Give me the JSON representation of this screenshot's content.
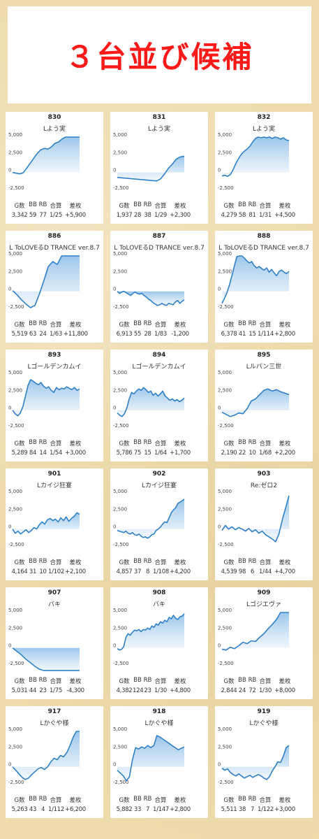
{
  "banner": {
    "title": "３台並び候補"
  },
  "stat_headers": [
    "G数",
    "BB",
    "RB",
    "合算",
    "差枚"
  ],
  "colors": {
    "line": "#2f80c8",
    "fill_top": "#8fbfe8",
    "fill_bottom": "#e8f2fb",
    "title": "#ff1a1a"
  },
  "chart_data": [
    {
      "type": "line",
      "no": "830",
      "name": "Lよう実",
      "games": "3,342",
      "bb": "59",
      "rb": "77",
      "combined": "1/25",
      "diff": "+5,900",
      "ylim": [
        -2500,
        5000
      ],
      "yticks": [
        "5,000",
        "2,500",
        "0",
        "-2,500"
      ],
      "yticks_values": [
        5000,
        2500,
        0,
        -2500
      ],
      "values": [
        0,
        -100,
        -200,
        -50,
        600,
        1300,
        2000,
        2700,
        3200,
        3400,
        3300,
        3600,
        4100,
        4300,
        4700,
        5100,
        5300,
        5500,
        5700,
        5900
      ]
    },
    {
      "type": "line",
      "no": "831",
      "name": "Lよう実",
      "games": "1,937",
      "bb": "28",
      "rb": "38",
      "combined": "1/29",
      "diff": "+2,300",
      "ylim": [
        -2500,
        5000
      ],
      "yticks": [
        "5,000",
        "2,500",
        "0",
        "-2,500"
      ],
      "yticks_values": [
        5000,
        2500,
        0,
        -2500
      ],
      "values": [
        -700,
        -750,
        -800,
        -850,
        -900,
        -950,
        -1000,
        -1050,
        -1100,
        -1150,
        -1200,
        -900,
        -200,
        600,
        1200,
        1900,
        2200,
        2300
      ]
    },
    {
      "type": "line",
      "no": "832",
      "name": "Lよう実",
      "games": "4,279",
      "bb": "58",
      "rb": "81",
      "combined": "1/31",
      "diff": "+4,500",
      "ylim": [
        -2500,
        5000
      ],
      "yticks": [
        "5,000",
        "2,500",
        "0",
        "-2,500"
      ],
      "yticks_values": [
        5000,
        2500,
        0,
        -2500
      ],
      "values": [
        -500,
        -400,
        -550,
        -300,
        400,
        1300,
        2000,
        2600,
        3000,
        3300,
        3700,
        4300,
        4800,
        5100,
        4900,
        5200,
        4900,
        5100,
        4800,
        5000,
        4900,
        4700,
        4900,
        4600,
        4500
      ]
    },
    {
      "type": "line",
      "no": "886",
      "name": "L ToLOVEるD TRANCE ver.8.7",
      "games": "5,519",
      "bb": "63",
      "rb": "24",
      "combined": "1/63",
      "diff": "+11,800",
      "ylim": [
        -2500,
        5000
      ],
      "yticks": [
        "5,000",
        "2,500",
        "0",
        "-2,500"
      ],
      "yticks_values": [
        5000,
        2500,
        0,
        -2500
      ],
      "values": [
        100,
        -500,
        -1200,
        -1800,
        -2300,
        -2000,
        -400,
        1500,
        3500,
        4200,
        3800,
        5200,
        7000,
        9000,
        10500,
        11800
      ]
    },
    {
      "type": "line",
      "no": "887",
      "name": "L ToLOVEるD TRANCE ver.8.7",
      "games": "6,913",
      "bb": "55",
      "rb": "28",
      "combined": "1/83",
      "diff": "-1,200",
      "ylim": [
        -2500,
        5000
      ],
      "yticks": [
        "5,000",
        "2,500",
        "0",
        "-2,500"
      ],
      "yticks_values": [
        5000,
        2500,
        0,
        -2500
      ],
      "values": [
        0,
        -300,
        -100,
        0,
        -200,
        -400,
        -600,
        -300,
        -100,
        -300,
        -400,
        -300,
        -600,
        -800,
        -1100,
        -1300,
        -1600,
        -1800,
        -2000,
        -1900,
        -1700,
        -1900,
        -2000,
        -1700,
        -1800,
        -1900,
        -1500,
        -1300,
        -1700,
        -1400,
        -1200
      ]
    },
    {
      "type": "line",
      "no": "888",
      "name": "L ToLOVEるD TRANCE ver.8.7",
      "games": "6,378",
      "bb": "41",
      "rb": "15",
      "combined": "1/114",
      "diff": "+2,800",
      "ylim": [
        -2500,
        5000
      ],
      "yticks": [
        "5,000",
        "2,500",
        "0",
        "-2,500"
      ],
      "yticks_values": [
        5000,
        2500,
        0,
        -2500
      ],
      "values": [
        -1700,
        -1000,
        -200,
        900,
        2200,
        3600,
        4900,
        5100,
        5000,
        4700,
        4300,
        4000,
        4200,
        3600,
        3300,
        3500,
        3200,
        3000,
        3300,
        2700,
        3100,
        2600,
        2200,
        2800,
        3000,
        2700,
        2500,
        2800
      ]
    },
    {
      "type": "line",
      "no": "893",
      "name": "Lゴールデンカムイ",
      "games": "5,289",
      "bb": "84",
      "rb": "14",
      "combined": "1/54",
      "diff": "+3,000",
      "ylim": [
        -2500,
        5000
      ],
      "yticks": [
        "5,000",
        "2,500",
        "0",
        "-2,500"
      ],
      "yticks_values": [
        5000,
        2500,
        0,
        -2500
      ],
      "values": [
        0,
        -500,
        -800,
        -400,
        500,
        2000,
        3500,
        4300,
        4100,
        3800,
        3600,
        3900,
        3400,
        3100,
        3300,
        2800,
        2500,
        3200,
        2900,
        3100,
        3000,
        3300,
        3100,
        2900,
        3200,
        2800,
        3000
      ]
    },
    {
      "type": "line",
      "no": "894",
      "name": "Lゴールデンカムイ",
      "games": "5,786",
      "bb": "75",
      "rb": "15",
      "combined": "1/64",
      "diff": "+1,700",
      "ylim": [
        -2500,
        5000
      ],
      "yticks": [
        "5,000",
        "2,500",
        "0",
        "-2,500"
      ],
      "yticks_values": [
        5000,
        2500,
        0,
        -2500
      ],
      "values": [
        -400,
        -700,
        -900,
        -500,
        300,
        1600,
        2500,
        2300,
        2700,
        3000,
        2800,
        3200,
        2900,
        2500,
        2700,
        2100,
        2400,
        2000,
        2300,
        2700,
        2000,
        1700,
        1400,
        1600,
        1300,
        1500,
        1200,
        1400,
        1700
      ]
    },
    {
      "type": "line",
      "no": "895",
      "name": "Lルパン三世",
      "games": "2,190",
      "bb": "22",
      "rb": "10",
      "combined": "1/68",
      "diff": "+2,200",
      "ylim": [
        -2500,
        5000
      ],
      "yticks": [
        "5,000",
        "2,500",
        "0",
        "-2,500"
      ],
      "yticks_values": [
        5000,
        2500,
        0,
        -2500
      ],
      "values": [
        -300,
        -600,
        -900,
        -700,
        -400,
        -500,
        200,
        1300,
        1600,
        2200,
        2800,
        3000,
        2700,
        2900,
        2600,
        2400,
        2200
      ]
    },
    {
      "type": "line",
      "no": "901",
      "name": "Lカイジ狂宴",
      "games": "4,164",
      "bb": "31",
      "rb": "10",
      "combined": "1/102",
      "diff": "+2,100",
      "ylim": [
        -2500,
        5000
      ],
      "yticks": [
        "5,000",
        "2,500",
        "0",
        "-2,500"
      ],
      "yticks_values": [
        5000,
        2500,
        0,
        -2500
      ],
      "values": [
        0,
        -600,
        -300,
        -700,
        -400,
        -100,
        -500,
        -200,
        200,
        0,
        600,
        1000,
        700,
        1300,
        1500,
        1200,
        1400,
        1000,
        1600,
        1200,
        1700,
        1100,
        1500,
        1800,
        2300,
        2100
      ]
    },
    {
      "type": "line",
      "no": "902",
      "name": "Lカイジ狂宴",
      "games": "4,857",
      "bb": "37",
      "rb": "8",
      "combined": "1/108",
      "diff": "+4,200",
      "ylim": [
        -2500,
        5000
      ],
      "yticks": [
        "5,000",
        "2,500",
        "0",
        "-2,500"
      ],
      "yticks_values": [
        5000,
        2500,
        0,
        -2500
      ],
      "values": [
        -200,
        -300,
        -400,
        -500,
        -300,
        -600,
        -700,
        -500,
        -800,
        -900,
        -700,
        -1000,
        -1200,
        -1100,
        -1300,
        -1100,
        -800,
        -700,
        -200,
        0,
        300,
        700,
        1000,
        900,
        1600,
        2300,
        2700,
        3000,
        3600,
        3800,
        4000,
        4200
      ]
    },
    {
      "type": "line",
      "no": "903",
      "name": "Re:ゼロ2",
      "games": "4,539",
      "bb": "98",
      "rb": "6",
      "combined": "1/44",
      "diff": "+4,700",
      "ylim": [
        -2500,
        5000
      ],
      "yticks": [
        "5,000",
        "2,500",
        "0",
        "-2,500"
      ],
      "yticks_values": [
        5000,
        2500,
        0,
        -2500
      ],
      "values": [
        -200,
        500,
        0,
        300,
        -100,
        200,
        0,
        -300,
        100,
        -400,
        -100,
        -600,
        -300,
        -800,
        -1100,
        -1400,
        -1800,
        -700,
        1300,
        3000,
        4700
      ]
    },
    {
      "type": "line",
      "no": "907",
      "name": "バキ",
      "games": "5,031",
      "bb": "44",
      "rb": "23",
      "combined": "1/75",
      "diff": "-4,300",
      "ylim": [
        -2500,
        5000
      ],
      "yticks": [
        "5,000",
        "2,500",
        "0",
        "-2,500"
      ],
      "yticks_values": [
        5000,
        2500,
        0,
        -2500
      ],
      "values": [
        0,
        -500,
        -1000,
        -1600,
        -2100,
        -2600,
        -3000,
        -3300,
        -3500,
        -3700,
        -3800,
        -3900,
        -4000,
        -4100,
        -4200,
        -4300
      ]
    },
    {
      "type": "line",
      "no": "908",
      "name": "バキ",
      "games": "4,382",
      "bb": "124",
      "rb": "23",
      "combined": "1/30",
      "diff": "+4,800",
      "ylim": [
        -2500,
        5000
      ],
      "yticks": [
        "5,000",
        "2,500",
        "0",
        "-2,500"
      ],
      "yticks_values": [
        5000,
        2500,
        0,
        -2500
      ],
      "values": [
        -100,
        -300,
        -200,
        200,
        1500,
        2000,
        1800,
        2200,
        2500,
        2400,
        2600,
        2300,
        2600,
        2500,
        2800,
        2600,
        3100,
        2900,
        3400,
        3200,
        3700,
        3500,
        3900,
        3700,
        4300,
        4100,
        4600,
        4200,
        4000,
        4400,
        4500,
        4800
      ]
    },
    {
      "type": "line",
      "no": "909",
      "name": "Lゴジエヴァ",
      "games": "2,844",
      "bb": "24",
      "rb": "72",
      "combined": "1/30",
      "diff": "+8,000",
      "ylim": [
        -2500,
        5000
      ],
      "yticks": [
        "5,000",
        "2,500",
        "0",
        "-2,500"
      ],
      "yticks_values": [
        5000,
        2500,
        0,
        -2500
      ],
      "values": [
        -200,
        -300,
        100,
        -100,
        300,
        800,
        600,
        1000,
        900,
        1500,
        2000,
        2700,
        3300,
        4000,
        5000,
        6500,
        8000
      ]
    },
    {
      "type": "line",
      "no": "917",
      "name": "Lかぐや様",
      "games": "5,263",
      "bb": "43",
      "rb": "4",
      "combined": "1/112",
      "diff": "+6,200",
      "ylim": [
        -2500,
        5000
      ],
      "yticks": [
        "5,000",
        "2,500",
        "0",
        "-2,500"
      ],
      "yticks_values": [
        5000,
        2500,
        0,
        -2500
      ],
      "values": [
        0,
        -500,
        -1000,
        -1500,
        -1800,
        -1600,
        -1100,
        -700,
        -300,
        -100,
        -400,
        0,
        700,
        1200,
        1000,
        1600,
        1400,
        2000,
        3000,
        4200,
        5500,
        6200
      ]
    },
    {
      "type": "line",
      "no": "918",
      "name": "Lかぐや様",
      "games": "5,882",
      "bb": "33",
      "rb": "7",
      "combined": "1/147",
      "diff": "+2,800",
      "ylim": [
        -2500,
        5000
      ],
      "yticks": [
        "5,000",
        "2,500",
        "0",
        "-2,500"
      ],
      "yticks_values": [
        5000,
        2500,
        0,
        -2500
      ],
      "values": [
        -500,
        -900,
        -1300,
        -2000,
        -1400,
        1000,
        2700,
        2500,
        2800,
        2600,
        3000,
        2700,
        3000,
        4400,
        4200,
        3900,
        3600,
        3300,
        3000,
        2700,
        2400,
        2600,
        2800
      ]
    },
    {
      "type": "line",
      "no": "919",
      "name": "Lかぐや様",
      "games": "5,511",
      "bb": "38",
      "rb": "7",
      "combined": "1/122",
      "diff": "+3,000",
      "ylim": [
        -2500,
        5000
      ],
      "yticks": [
        "5,000",
        "2,500",
        "0",
        "-2,500"
      ],
      "yticks_values": [
        5000,
        2500,
        0,
        -2500
      ],
      "values": [
        -200,
        -500,
        -300,
        -800,
        -1100,
        -1300,
        -1000,
        -1300,
        -1600,
        -1400,
        -1200,
        -1500,
        -1300,
        -1100,
        -1300,
        -1600,
        -1800,
        -1400,
        -600,
        0,
        700,
        600,
        1500,
        2700,
        3000
      ]
    }
  ]
}
